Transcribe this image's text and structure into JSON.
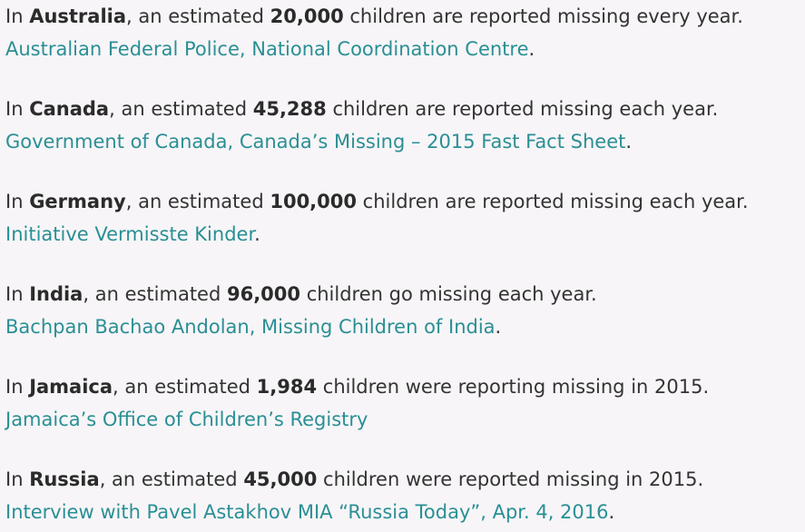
{
  "entries": [
    {
      "in": "In ",
      "country": "Australia",
      "mid": ", an estimated ",
      "count": "20,000",
      "rest": " children are reported missing every year.",
      "source": "Australian Federal Police, National Coordination Centre",
      "source_end": "."
    },
    {
      "in": "In ",
      "country": "Canada",
      "mid": ", an estimated ",
      "count": "45,288",
      "rest": " children are reported missing each year.",
      "source": "Government of Canada, Canada’s Missing – 2015 Fast Fact Sheet",
      "source_end": "."
    },
    {
      "in": "In ",
      "country": "Germany",
      "mid": ", an estimated ",
      "count": "100,000",
      "rest": " children are reported missing each year.",
      "source": "Initiative Vermisste Kinder",
      "source_end": "."
    },
    {
      "in": "In ",
      "country": "India",
      "mid": ", an estimated ",
      "count": "96,000",
      "rest": " children go missing each year.",
      "source": "Bachpan Bachao Andolan, Missing Children of India",
      "source_end": "."
    },
    {
      "in": "In ",
      "country": "Jamaica",
      "mid": ", an estimated ",
      "count": "1,984",
      "rest": " children were reporting missing in 2015.",
      "source": "Jamaica’s Office of Children’s Registry",
      "source_end": ""
    },
    {
      "in": "In ",
      "country": "Russia",
      "mid": ", an estimated ",
      "count": "45,000",
      "rest": " children were reported missing in 2015.",
      "source": "Interview with Pavel Astakhov MIA “Russia Today”, Apr. 4, 2016",
      "source_end": "."
    }
  ]
}
